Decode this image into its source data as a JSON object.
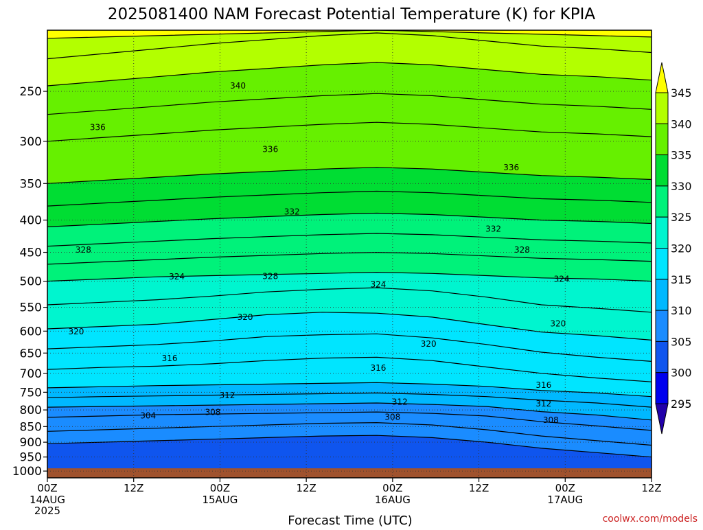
{
  "title": "2025081400 NAM Forecast Potential Temperature (K) for KPIA",
  "credit": "coolwx.com/models",
  "chart_data": {
    "type": "heatmap",
    "title": "2025081400 NAM Forecast Potential Temperature (K) for KPIA",
    "xlabel": "Forecast Time (UTC)",
    "ylabel": "",
    "x_unit": "forecast hour",
    "xlim": [
      0,
      84
    ],
    "y_unit": "hPa",
    "ylim": [
      1025,
      200
    ],
    "y_scale": "log",
    "grid": true,
    "x_ticks": [
      {
        "hour": 0,
        "label": "00Z",
        "sub": [
          "14AUG",
          "2025"
        ]
      },
      {
        "hour": 12,
        "label": "12Z",
        "sub": []
      },
      {
        "hour": 24,
        "label": "00Z",
        "sub": [
          "15AUG"
        ]
      },
      {
        "hour": 36,
        "label": "12Z",
        "sub": []
      },
      {
        "hour": 48,
        "label": "00Z",
        "sub": [
          "16AUG"
        ]
      },
      {
        "hour": 60,
        "label": "12Z",
        "sub": []
      },
      {
        "hour": 72,
        "label": "00Z",
        "sub": [
          "17AUG"
        ]
      },
      {
        "hour": 84,
        "label": "12Z",
        "sub": []
      }
    ],
    "y_ticks": [
      250,
      300,
      350,
      400,
      450,
      500,
      550,
      600,
      650,
      700,
      750,
      800,
      850,
      900,
      950,
      1000
    ],
    "colorbar": {
      "ticks": [
        345,
        340,
        335,
        330,
        325,
        320,
        315,
        310,
        305,
        300,
        295
      ],
      "bands": [
        {
          "min": 345,
          "max": 350,
          "color": "#ffff00"
        },
        {
          "min": 340,
          "max": 345,
          "color": "#b3ff00"
        },
        {
          "min": 335,
          "max": 340,
          "color": "#66f000"
        },
        {
          "min": 330,
          "max": 335,
          "color": "#00dd33"
        },
        {
          "min": 325,
          "max": 330,
          "color": "#00f27a"
        },
        {
          "min": 320,
          "max": 325,
          "color": "#00f5cf"
        },
        {
          "min": 315,
          "max": 320,
          "color": "#00e5ff"
        },
        {
          "min": 310,
          "max": 315,
          "color": "#00b8ff"
        },
        {
          "min": 305,
          "max": 310,
          "color": "#1a8cff"
        },
        {
          "min": 300,
          "max": 305,
          "color": "#0f55ee"
        },
        {
          "min": 295,
          "max": 300,
          "color": "#0000ee"
        },
        {
          "min": 290,
          "max": 295,
          "color": "#2200aa"
        }
      ]
    },
    "ground_color": "#a0522d",
    "ground_below_hPa": 990,
    "contour_interval": 2,
    "contours": [
      {
        "theta": 304,
        "p": [
          905,
          900,
          895,
          890,
          885,
          880,
          878,
          885,
          900,
          920,
          935,
          950
        ]
      },
      {
        "theta": 306,
        "p": [
          865,
          860,
          855,
          850,
          845,
          840,
          838,
          845,
          860,
          880,
          895,
          910
        ]
      },
      {
        "theta": 308,
        "p": [
          822,
          818,
          814,
          812,
          810,
          808,
          806,
          810,
          818,
          835,
          848,
          862
        ]
      },
      {
        "theta": 310,
        "p": [
          792,
          790,
          788,
          786,
          784,
          782,
          780,
          784,
          790,
          805,
          815,
          830
        ]
      },
      {
        "theta": 312,
        "p": [
          765,
          762,
          760,
          758,
          756,
          754,
          752,
          756,
          762,
          772,
          780,
          792
        ]
      },
      {
        "theta": 314,
        "p": [
          738,
          735,
          732,
          730,
          728,
          726,
          724,
          728,
          734,
          745,
          752,
          762
        ]
      },
      {
        "theta": 316,
        "p": [
          690,
          685,
          682,
          676,
          668,
          662,
          660,
          668,
          684,
          700,
          712,
          722
        ]
      },
      {
        "theta": 318,
        "p": [
          640,
          635,
          630,
          622,
          612,
          608,
          606,
          615,
          630,
          648,
          660,
          670
        ]
      },
      {
        "theta": 320,
        "p": [
          595,
          590,
          585,
          575,
          565,
          560,
          562,
          570,
          586,
          602,
          610,
          620
        ]
      },
      {
        "theta": 322,
        "p": [
          545,
          540,
          535,
          528,
          520,
          515,
          512,
          518,
          530,
          545,
          552,
          560
        ]
      },
      {
        "theta": 324,
        "p": [
          500,
          496,
          492,
          490,
          488,
          486,
          484,
          486,
          490,
          494,
          496,
          500
        ]
      },
      {
        "theta": 326,
        "p": [
          470,
          466,
          462,
          458,
          455,
          452,
          450,
          452,
          456,
          460,
          462,
          465
        ]
      },
      {
        "theta": 328,
        "p": [
          440,
          436,
          432,
          428,
          425,
          422,
          420,
          422,
          426,
          430,
          432,
          435
        ]
      },
      {
        "theta": 330,
        "p": [
          410,
          406,
          402,
          398,
          395,
          392,
          390,
          392,
          396,
          400,
          402,
          405
        ]
      },
      {
        "theta": 332,
        "p": [
          380,
          376,
          372,
          368,
          365,
          362,
          360,
          362,
          366,
          370,
          372,
          375
        ]
      },
      {
        "theta": 334,
        "p": [
          350,
          346,
          342,
          338,
          335,
          332,
          330,
          332,
          336,
          340,
          342,
          345
        ]
      },
      {
        "theta": 336,
        "p": [
          300,
          296,
          292,
          288,
          285,
          282,
          280,
          282,
          286,
          290,
          292,
          295
        ]
      },
      {
        "theta": 338,
        "p": [
          272,
          268,
          264,
          260,
          257,
          254,
          252,
          254,
          258,
          262,
          264,
          267
        ]
      },
      {
        "theta": 340,
        "p": [
          245,
          241,
          237,
          233,
          230,
          227,
          225,
          227,
          231,
          235,
          237,
          240
        ]
      },
      {
        "theta": 342,
        "p": [
          222,
          218,
          214,
          210,
          207,
          204,
          202,
          204,
          208,
          212,
          214,
          217
        ]
      },
      {
        "theta": 344,
        "p": [
          206,
          205,
          204,
          203,
          202,
          201,
          200,
          201,
          202,
          203,
          204,
          205
        ]
      }
    ],
    "contour_x_hours": [
      0,
      7.6,
      15.3,
      22.9,
      30.5,
      38.2,
      45.8,
      53.5,
      61.1,
      68.7,
      76.4,
      84
    ],
    "contour_labels": [
      {
        "text": "340",
        "hour": 26.5,
        "p": 245
      },
      {
        "text": "336",
        "hour": 7,
        "p": 285
      },
      {
        "text": "336",
        "hour": 31,
        "p": 309
      },
      {
        "text": "336",
        "hour": 64.5,
        "p": 330
      },
      {
        "text": "332",
        "hour": 34,
        "p": 388
      },
      {
        "text": "332",
        "hour": 62,
        "p": 413
      },
      {
        "text": "328",
        "hour": 5,
        "p": 446
      },
      {
        "text": "328",
        "hour": 31,
        "p": 491
      },
      {
        "text": "328",
        "hour": 66,
        "p": 446
      },
      {
        "text": "324",
        "hour": 18,
        "p": 492
      },
      {
        "text": "324",
        "hour": 46,
        "p": 506
      },
      {
        "text": "324",
        "hour": 71.5,
        "p": 496
      },
      {
        "text": "320",
        "hour": 27.5,
        "p": 570
      },
      {
        "text": "320",
        "hour": 4,
        "p": 601
      },
      {
        "text": "320",
        "hour": 53,
        "p": 629
      },
      {
        "text": "320",
        "hour": 71,
        "p": 584
      },
      {
        "text": "316",
        "hour": 17,
        "p": 663
      },
      {
        "text": "316",
        "hour": 46,
        "p": 686
      },
      {
        "text": "316",
        "hour": 69,
        "p": 731
      },
      {
        "text": "312",
        "hour": 25,
        "p": 759
      },
      {
        "text": "312",
        "hour": 49,
        "p": 777
      },
      {
        "text": "312",
        "hour": 69,
        "p": 782
      },
      {
        "text": "308",
        "hour": 23,
        "p": 807
      },
      {
        "text": "308",
        "hour": 48,
        "p": 821
      },
      {
        "text": "308",
        "hour": 70,
        "p": 830
      },
      {
        "text": "304",
        "hour": 14,
        "p": 817
      }
    ]
  }
}
